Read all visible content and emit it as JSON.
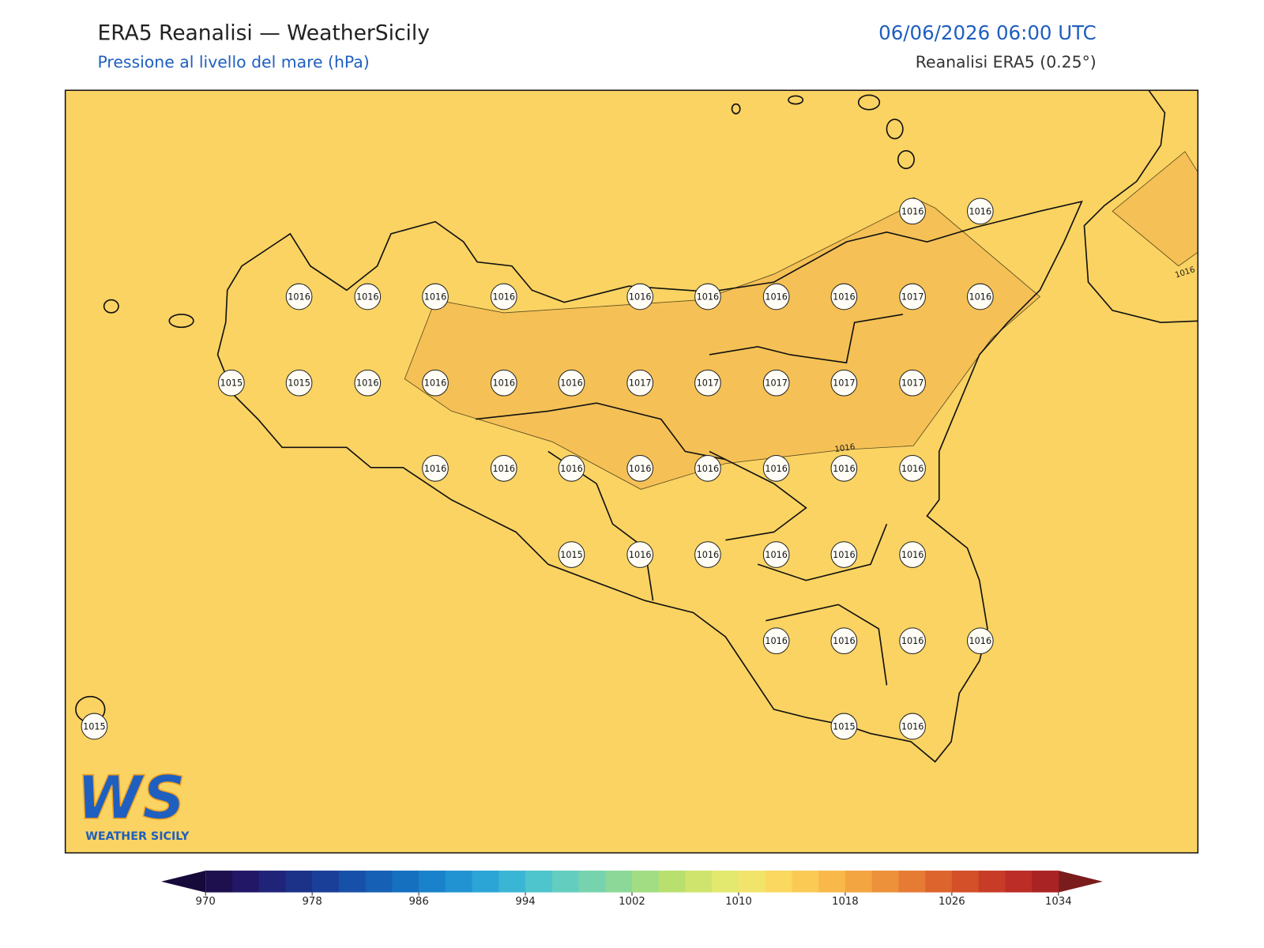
{
  "header": {
    "title": "ERA5 Reanalisi — WeatherSicily",
    "subtitle": "Pressione al livello del mare (hPa)",
    "datetime": "06/06/2026 06:00 UTC",
    "source": "Reanalisi ERA5 (0.25°)"
  },
  "map": {
    "fill_color": "#fad362",
    "high_color": "#f5c055",
    "station_labels": [
      {
        "row": 0,
        "items": [
          [
            13,
            1016
          ],
          [
            14,
            1016
          ]
        ]
      },
      {
        "row": 1,
        "items": [
          [
            4,
            1016
          ],
          [
            5,
            1016
          ],
          [
            6,
            1016
          ],
          [
            7,
            1016
          ],
          [
            9,
            1016
          ],
          [
            10,
            1016
          ],
          [
            11,
            1016
          ],
          [
            12,
            1016
          ],
          [
            13,
            1017
          ],
          [
            14,
            1016
          ]
        ]
      },
      {
        "row": 2,
        "items": [
          [
            3,
            1015
          ],
          [
            4,
            1015
          ],
          [
            5,
            1016
          ],
          [
            6,
            1016
          ],
          [
            7,
            1016
          ],
          [
            8,
            1016
          ],
          [
            9,
            1017
          ],
          [
            10,
            1017
          ],
          [
            11,
            1017
          ],
          [
            12,
            1017
          ],
          [
            13,
            1017
          ]
        ]
      },
      {
        "row": 3,
        "items": [
          [
            6,
            1016
          ],
          [
            7,
            1016
          ],
          [
            8,
            1016
          ],
          [
            9,
            1016
          ],
          [
            10,
            1016
          ],
          [
            11,
            1016
          ],
          [
            12,
            1016
          ],
          [
            13,
            1016
          ]
        ]
      },
      {
        "row": 4,
        "items": [
          [
            8,
            1015
          ],
          [
            9,
            1016
          ],
          [
            10,
            1016
          ],
          [
            11,
            1016
          ],
          [
            12,
            1016
          ],
          [
            13,
            1016
          ]
        ]
      },
      {
        "row": 5,
        "items": [
          [
            11,
            1016
          ],
          [
            12,
            1016
          ],
          [
            13,
            1016
          ],
          [
            14,
            1016
          ]
        ]
      },
      {
        "row": 6,
        "items": [
          [
            1,
            1015
          ],
          [
            12,
            1015
          ],
          [
            13,
            1016
          ]
        ]
      }
    ],
    "contour_labels": [
      1016,
      1016
    ]
  },
  "logo": {
    "text": "WS",
    "caption": "WEATHER SICILY"
  },
  "colorbar": {
    "ticks": [
      970,
      978,
      986,
      994,
      1002,
      1010,
      1018,
      1026,
      1034
    ],
    "colors": [
      "#1e0f4f",
      "#211766",
      "#1f2478",
      "#1c3288",
      "#1a3f98",
      "#1750a8",
      "#1660b5",
      "#1670c0",
      "#1a82ca",
      "#2193d2",
      "#2ba5d6",
      "#3ab6d4",
      "#4ec4cc",
      "#63cdbf",
      "#77d3ad",
      "#8bd898",
      "#a2dd84",
      "#b9e06f",
      "#cfe46c",
      "#e2e96e",
      "#f2e46a",
      "#fbd860",
      "#fbca55",
      "#f8b94a",
      "#f3a541",
      "#ed913a",
      "#e67b33",
      "#dd652d",
      "#d35029",
      "#c83c27",
      "#bb2d26",
      "#aa2324"
    ],
    "extend_colors": [
      "#160a3a",
      "#7a1c1c"
    ]
  }
}
